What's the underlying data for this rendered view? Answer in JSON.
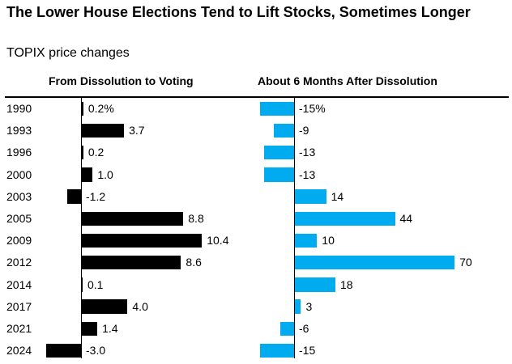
{
  "header": {
    "title": "The Lower House Elections Tend to Lift Stocks, Sometimes Longer",
    "subtitle": "TOPIX price changes"
  },
  "chart_data": {
    "type": "bar",
    "orientation": "horizontal",
    "title": "The Lower House Elections Tend to Lift Stocks, Sometimes Longer",
    "subtitle": "TOPIX price changes",
    "unit": "%",
    "grid": false,
    "legend_position": "column-headers",
    "categories": [
      "1990",
      "1993",
      "1996",
      "2000",
      "2003",
      "2005",
      "2009",
      "2012",
      "2014",
      "2017",
      "2021",
      "2024"
    ],
    "series": [
      {
        "name": "From Dissolution to Voting",
        "color": "#000000",
        "xlim": [
          -3.5,
          15
        ],
        "values": [
          0.2,
          3.7,
          0.2,
          1.0,
          -1.2,
          8.8,
          10.4,
          8.6,
          0.1,
          4.0,
          1.4,
          -3.0
        ],
        "labels": [
          "0.2%",
          "3.7",
          "0.2",
          "1.0",
          "-1.2",
          "8.8",
          "10.4",
          "8.6",
          "0.1",
          "4.0",
          "1.4",
          "-3.0"
        ]
      },
      {
        "name": "About 6 Months After Dissolution",
        "color": "#00ABF0",
        "xlim": [
          -16,
          93
        ],
        "values": [
          -15,
          -9,
          -13,
          -13,
          14,
          44,
          10,
          70,
          18,
          3,
          -6,
          -15
        ],
        "labels": [
          "-15%",
          "-9",
          "-13",
          "-13",
          "14",
          "44",
          "10",
          "70",
          "18",
          "3",
          "-6",
          "-15"
        ]
      }
    ]
  }
}
